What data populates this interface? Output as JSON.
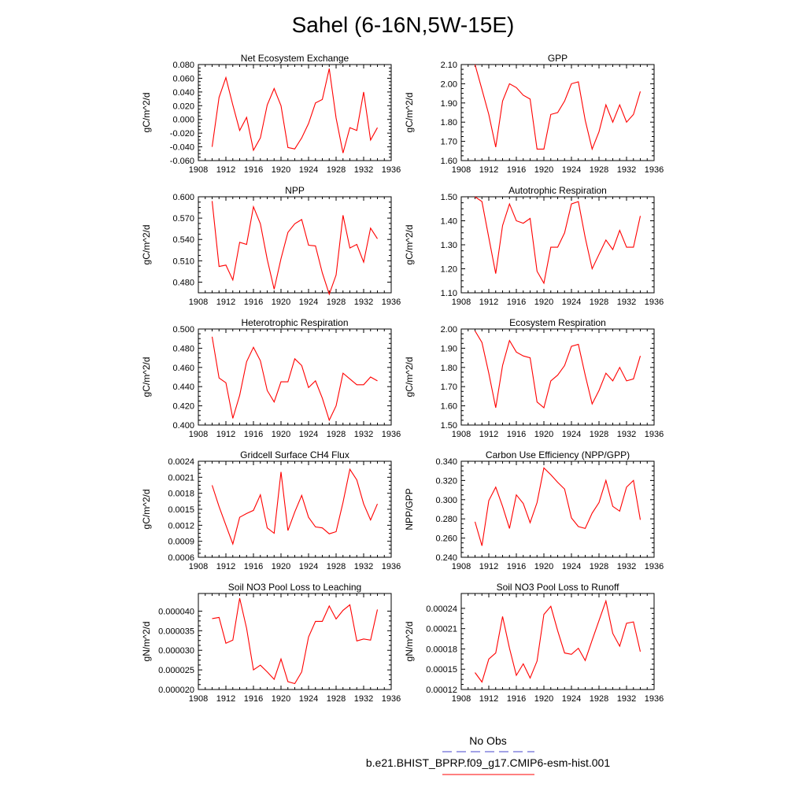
{
  "figure": {
    "title": "Sahel (6-16N,5W-15E)",
    "line_color": "#ff0000",
    "obs_color": "#4444cc"
  },
  "legend": {
    "obs_label": "No Obs",
    "model_label": "b.e21.BHIST_BPRP.f09_g17.CMIP6-esm-hist.001"
  },
  "chart_data": [
    {
      "type": "line",
      "title": "Net Ecosystem Exchange",
      "ylabel": "gC/m^2/d",
      "xlim": [
        1908,
        1936
      ],
      "ylim": [
        -0.06,
        0.08
      ],
      "xticks": [
        "1908",
        "1912",
        "1916",
        "1920",
        "1924",
        "1928",
        "1932",
        "1936"
      ],
      "yticks": [
        "-0.060",
        "-0.040",
        "-0.020",
        "0.000",
        "0.020",
        "0.040",
        "0.060",
        "0.080"
      ],
      "x": [
        1910,
        1911,
        1912,
        1913,
        1914,
        1915,
        1916,
        1917,
        1918,
        1919,
        1920,
        1921,
        1922,
        1923,
        1924,
        1925,
        1926,
        1927,
        1928,
        1929,
        1930,
        1931,
        1932,
        1933,
        1934
      ],
      "values": [
        -0.04,
        0.032,
        0.061,
        0.021,
        -0.016,
        0.003,
        -0.045,
        -0.027,
        0.021,
        0.045,
        0.02,
        -0.041,
        -0.043,
        -0.027,
        -0.006,
        0.024,
        0.029,
        0.074,
        0.002,
        -0.049,
        -0.012,
        -0.016,
        0.04,
        -0.03,
        -0.012
      ]
    },
    {
      "type": "line",
      "title": "GPP",
      "ylabel": "gC/m^2/d",
      "xlim": [
        1908,
        1936
      ],
      "ylim": [
        1.6,
        2.1
      ],
      "xticks": [
        "1908",
        "1912",
        "1916",
        "1920",
        "1924",
        "1928",
        "1932",
        "1936"
      ],
      "yticks": [
        "1.60",
        "1.70",
        "1.80",
        "1.90",
        "2.00",
        "2.10"
      ],
      "x": [
        1910,
        1911,
        1912,
        1913,
        1914,
        1915,
        1916,
        1917,
        1918,
        1919,
        1920,
        1921,
        1922,
        1923,
        1924,
        1925,
        1926,
        1927,
        1928,
        1929,
        1930,
        1931,
        1932,
        1933,
        1934
      ],
      "values": [
        2.1,
        1.97,
        1.84,
        1.67,
        1.91,
        2.0,
        1.98,
        1.94,
        1.92,
        1.66,
        1.66,
        1.84,
        1.85,
        1.91,
        2.0,
        2.01,
        1.81,
        1.66,
        1.75,
        1.89,
        1.8,
        1.89,
        1.8,
        1.84,
        1.96
      ]
    },
    {
      "type": "line",
      "title": "NPP",
      "ylabel": "gC/m^2/d",
      "xlim": [
        1908,
        1936
      ],
      "ylim": [
        0.465,
        0.6
      ],
      "xticks": [
        "1908",
        "1912",
        "1916",
        "1920",
        "1924",
        "1928",
        "1932",
        "1936"
      ],
      "yticks": [
        "0.480",
        "0.510",
        "0.540",
        "0.570",
        "0.600"
      ],
      "x": [
        1910,
        1911,
        1912,
        1913,
        1914,
        1915,
        1916,
        1917,
        1918,
        1919,
        1920,
        1921,
        1922,
        1923,
        1924,
        1925,
        1926,
        1927,
        1928,
        1929,
        1930,
        1931,
        1932,
        1933,
        1934
      ],
      "values": [
        0.594,
        0.502,
        0.504,
        0.483,
        0.536,
        0.533,
        0.586,
        0.562,
        0.512,
        0.47,
        0.513,
        0.55,
        0.562,
        0.568,
        0.532,
        0.531,
        0.493,
        0.463,
        0.49,
        0.574,
        0.528,
        0.533,
        0.508,
        0.556,
        0.541
      ]
    },
    {
      "type": "line",
      "title": "Autotrophic Respiration",
      "ylabel": "gC/m^2/d",
      "xlim": [
        1908,
        1936
      ],
      "ylim": [
        1.1,
        1.5
      ],
      "xticks": [
        "1908",
        "1912",
        "1916",
        "1920",
        "1924",
        "1928",
        "1932",
        "1936"
      ],
      "yticks": [
        "1.10",
        "1.20",
        "1.30",
        "1.40",
        "1.50"
      ],
      "x": [
        1910,
        1911,
        1912,
        1913,
        1914,
        1915,
        1916,
        1917,
        1918,
        1919,
        1920,
        1921,
        1922,
        1923,
        1924,
        1925,
        1926,
        1927,
        1928,
        1929,
        1930,
        1931,
        1932,
        1933,
        1934
      ],
      "values": [
        1.5,
        1.48,
        1.33,
        1.18,
        1.38,
        1.47,
        1.4,
        1.39,
        1.41,
        1.19,
        1.14,
        1.29,
        1.29,
        1.35,
        1.47,
        1.48,
        1.33,
        1.2,
        1.26,
        1.32,
        1.28,
        1.36,
        1.29,
        1.29,
        1.42
      ]
    },
    {
      "type": "line",
      "title": "Heterotrophic Respiration",
      "ylabel": "gC/m^2/d",
      "xlim": [
        1908,
        1936
      ],
      "ylim": [
        0.4,
        0.5
      ],
      "xticks": [
        "1908",
        "1912",
        "1916",
        "1920",
        "1924",
        "1928",
        "1932",
        "1936"
      ],
      "yticks": [
        "0.400",
        "0.420",
        "0.440",
        "0.460",
        "0.480",
        "0.500"
      ],
      "x": [
        1910,
        1911,
        1912,
        1913,
        1914,
        1915,
        1916,
        1917,
        1918,
        1919,
        1920,
        1921,
        1922,
        1923,
        1924,
        1925,
        1926,
        1927,
        1928,
        1929,
        1930,
        1931,
        1932,
        1933,
        1934
      ],
      "values": [
        0.492,
        0.449,
        0.444,
        0.407,
        0.431,
        0.466,
        0.481,
        0.467,
        0.436,
        0.424,
        0.445,
        0.445,
        0.469,
        0.462,
        0.439,
        0.446,
        0.428,
        0.405,
        0.42,
        0.454,
        0.448,
        0.442,
        0.442,
        0.45,
        0.446
      ]
    },
    {
      "type": "line",
      "title": "Ecosystem Respiration",
      "ylabel": "gC/m^2/d",
      "xlim": [
        1908,
        1936
      ],
      "ylim": [
        1.5,
        2.0
      ],
      "xticks": [
        "1908",
        "1912",
        "1916",
        "1920",
        "1924",
        "1928",
        "1932",
        "1936"
      ],
      "yticks": [
        "1.50",
        "1.60",
        "1.70",
        "1.80",
        "1.90",
        "2.00"
      ],
      "x": [
        1910,
        1911,
        1912,
        1913,
        1914,
        1915,
        1916,
        1917,
        1918,
        1919,
        1920,
        1921,
        1922,
        1923,
        1924,
        1925,
        1926,
        1927,
        1928,
        1929,
        1930,
        1931,
        1932,
        1933,
        1934
      ],
      "values": [
        1.99,
        1.93,
        1.77,
        1.59,
        1.81,
        1.94,
        1.88,
        1.86,
        1.85,
        1.62,
        1.59,
        1.73,
        1.76,
        1.81,
        1.91,
        1.92,
        1.76,
        1.61,
        1.68,
        1.77,
        1.73,
        1.8,
        1.73,
        1.74,
        1.86
      ]
    },
    {
      "type": "line",
      "title": "Gridcell Surface CH4 Flux",
      "ylabel": "gC/m^2/d",
      "xlim": [
        1908,
        1936
      ],
      "ylim": [
        0.0006,
        0.0024
      ],
      "xticks": [
        "1908",
        "1912",
        "1916",
        "1920",
        "1924",
        "1928",
        "1932",
        "1936"
      ],
      "yticks": [
        "0.0006",
        "0.0009",
        "0.0012",
        "0.0015",
        "0.0018",
        "0.0021",
        "0.0024"
      ],
      "x": [
        1910,
        1911,
        1912,
        1913,
        1914,
        1915,
        1916,
        1917,
        1918,
        1919,
        1920,
        1921,
        1922,
        1923,
        1924,
        1925,
        1926,
        1927,
        1928,
        1929,
        1930,
        1931,
        1932,
        1933,
        1934
      ],
      "values": [
        0.00195,
        0.00155,
        0.0012,
        0.00085,
        0.00135,
        0.00142,
        0.00148,
        0.00177,
        0.00115,
        0.00105,
        0.0022,
        0.0011,
        0.00145,
        0.00176,
        0.00135,
        0.00117,
        0.00115,
        0.00104,
        0.00108,
        0.00163,
        0.00225,
        0.00205,
        0.0016,
        0.0013,
        0.0016
      ]
    },
    {
      "type": "line",
      "title": "Carbon Use Efficiency (NPP/GPP)",
      "ylabel": "NPP/GPP",
      "xlim": [
        1908,
        1936
      ],
      "ylim": [
        0.24,
        0.34
      ],
      "xticks": [
        "1908",
        "1912",
        "1916",
        "1920",
        "1924",
        "1928",
        "1932",
        "1936"
      ],
      "yticks": [
        "0.240",
        "0.260",
        "0.280",
        "0.300",
        "0.320",
        "0.340"
      ],
      "x": [
        1910,
        1911,
        1912,
        1913,
        1914,
        1915,
        1916,
        1917,
        1918,
        1919,
        1920,
        1921,
        1922,
        1923,
        1924,
        1925,
        1926,
        1927,
        1928,
        1929,
        1930,
        1931,
        1932,
        1933,
        1934
      ],
      "values": [
        0.277,
        0.252,
        0.299,
        0.313,
        0.293,
        0.27,
        0.305,
        0.296,
        0.276,
        0.297,
        0.333,
        0.326,
        0.318,
        0.311,
        0.281,
        0.272,
        0.27,
        0.286,
        0.297,
        0.32,
        0.293,
        0.288,
        0.313,
        0.32,
        0.279
      ]
    },
    {
      "type": "line",
      "title": "Soil NO3 Pool Loss to Leaching",
      "ylabel": "gN/m^2/d",
      "xlim": [
        1908,
        1936
      ],
      "ylim": [
        2e-05,
        4.45e-05
      ],
      "xticks": [
        "1908",
        "1912",
        "1916",
        "1920",
        "1924",
        "1928",
        "1932",
        "1936"
      ],
      "yticks": [
        "0.000020",
        "0.000025",
        "0.000030",
        "0.000035",
        "0.000040"
      ],
      "x": [
        1910,
        1911,
        1912,
        1913,
        1914,
        1915,
        1916,
        1917,
        1918,
        1919,
        1920,
        1921,
        1922,
        1923,
        1924,
        1925,
        1926,
        1927,
        1928,
        1929,
        1930,
        1931,
        1932,
        1933,
        1934
      ],
      "values": [
        3.81e-05,
        3.84e-05,
        3.18e-05,
        3.26e-05,
        4.33e-05,
        3.56e-05,
        2.5e-05,
        2.62e-05,
        2.45e-05,
        2.26e-05,
        2.78e-05,
        2.2e-05,
        2.15e-05,
        2.45e-05,
        3.34e-05,
        3.74e-05,
        3.74e-05,
        4.13e-05,
        3.8e-05,
        4.02e-05,
        4.16e-05,
        3.24e-05,
        3.29e-05,
        3.26e-05,
        4.04e-05
      ]
    },
    {
      "type": "line",
      "title": "Soil NO3 Pool Loss to Runoff",
      "ylabel": "gN/m^2/d",
      "xlim": [
        1908,
        1936
      ],
      "ylim": [
        0.00012,
        0.000262
      ],
      "xticks": [
        "1908",
        "1912",
        "1916",
        "1920",
        "1924",
        "1928",
        "1932",
        "1936"
      ],
      "yticks": [
        "0.00012",
        "0.00015",
        "0.00018",
        "0.00021",
        "0.00024"
      ],
      "x": [
        1910,
        1911,
        1912,
        1913,
        1914,
        1915,
        1916,
        1917,
        1918,
        1919,
        1920,
        1921,
        1922,
        1923,
        1924,
        1925,
        1926,
        1927,
        1928,
        1929,
        1930,
        1931,
        1932,
        1933,
        1934
      ],
      "values": [
        0.000145,
        0.000131,
        0.000165,
        0.000174,
        0.000228,
        0.000181,
        0.000141,
        0.000158,
        0.000137,
        0.000162,
        0.000231,
        0.000243,
        0.000207,
        0.000174,
        0.000172,
        0.000181,
        0.000163,
        0.000193,
        0.000222,
        0.000251,
        0.000203,
        0.000184,
        0.000218,
        0.00022,
        0.000176
      ]
    }
  ]
}
